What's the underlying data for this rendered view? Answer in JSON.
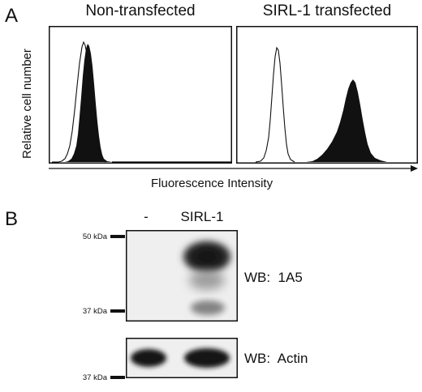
{
  "panel_a": {
    "letter": "A",
    "titles": {
      "left": "Non-transfected",
      "right": "SIRL-1 transfected"
    },
    "xlabel": "Fluorescence Intensity",
    "ylabel": "Relative cell number"
  },
  "panel_b": {
    "letter": "B",
    "lanes": [
      "-",
      "SIRL-1"
    ],
    "markers": {
      "m50": "50 kDa",
      "m37_upper": "37 kDa",
      "m37_lower": "37 kDa"
    },
    "blots": {
      "top": "WB:  1A5",
      "bottom": "WB:  Actin"
    }
  },
  "colors": {
    "ink": "#111111",
    "blot_background": "#efefef",
    "band": "#161616"
  }
}
